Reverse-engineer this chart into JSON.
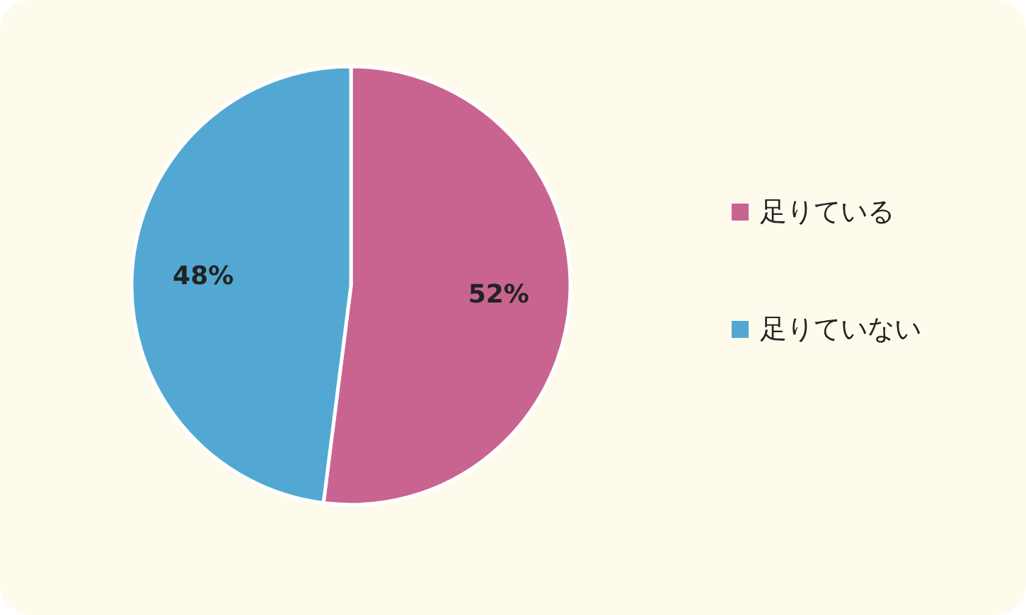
{
  "chart_data": {
    "type": "pie",
    "categories": [
      "足りている",
      "足りていない"
    ],
    "values": [
      52,
      48
    ],
    "colors": [
      "#c96490",
      "#52a8d3"
    ],
    "value_labels": [
      "52%",
      "48%"
    ],
    "legend": "right"
  }
}
